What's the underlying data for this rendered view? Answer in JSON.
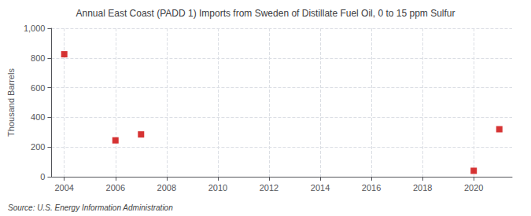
{
  "chart_data": {
    "type": "scatter",
    "title": "Annual East Coast (PADD 1) Imports from Sweden of Distillate Fuel Oil, 0 to 15 ppm Sulfur",
    "ylabel": "Thousand Barrels",
    "annotation": "Source: U.S. Energy Information Administration",
    "x": [
      2004,
      2006,
      2007,
      2020,
      2021
    ],
    "values": [
      825,
      245,
      285,
      40,
      320
    ],
    "color": "#cc0000",
    "marker": "square",
    "xlim": [
      2003.5,
      2021.5
    ],
    "xticks": [
      2004,
      2006,
      2008,
      2010,
      2012,
      2014,
      2016,
      2018,
      2020
    ],
    "ylim": [
      0,
      1000
    ],
    "yticks": [
      0,
      200,
      400,
      600,
      800,
      {
        "value": 1000,
        "label": "1,000"
      }
    ],
    "grid": true
  }
}
